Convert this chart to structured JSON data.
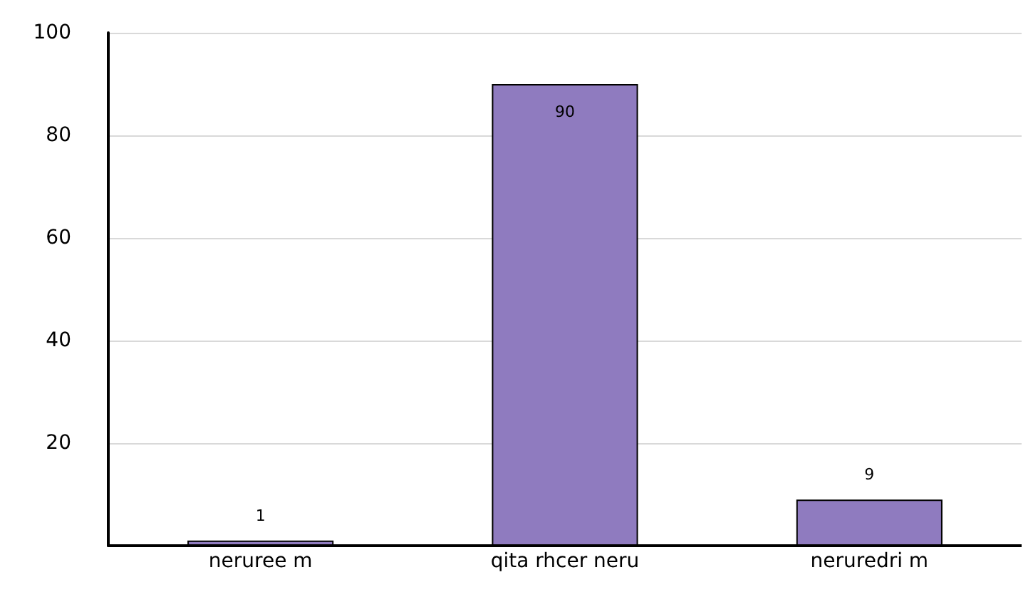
{
  "chart_data": {
    "type": "bar",
    "categories": [
      "neruree m",
      "qita rhcer neru",
      "neruredri m"
    ],
    "values": [
      1,
      90,
      9
    ],
    "data_labels": true,
    "color": "#8f7bbf",
    "ylim": [
      0,
      100
    ],
    "yticks": [
      {
        "value": 0,
        "label": null
      },
      20,
      40,
      60,
      80,
      100
    ],
    "grid": "y"
  }
}
